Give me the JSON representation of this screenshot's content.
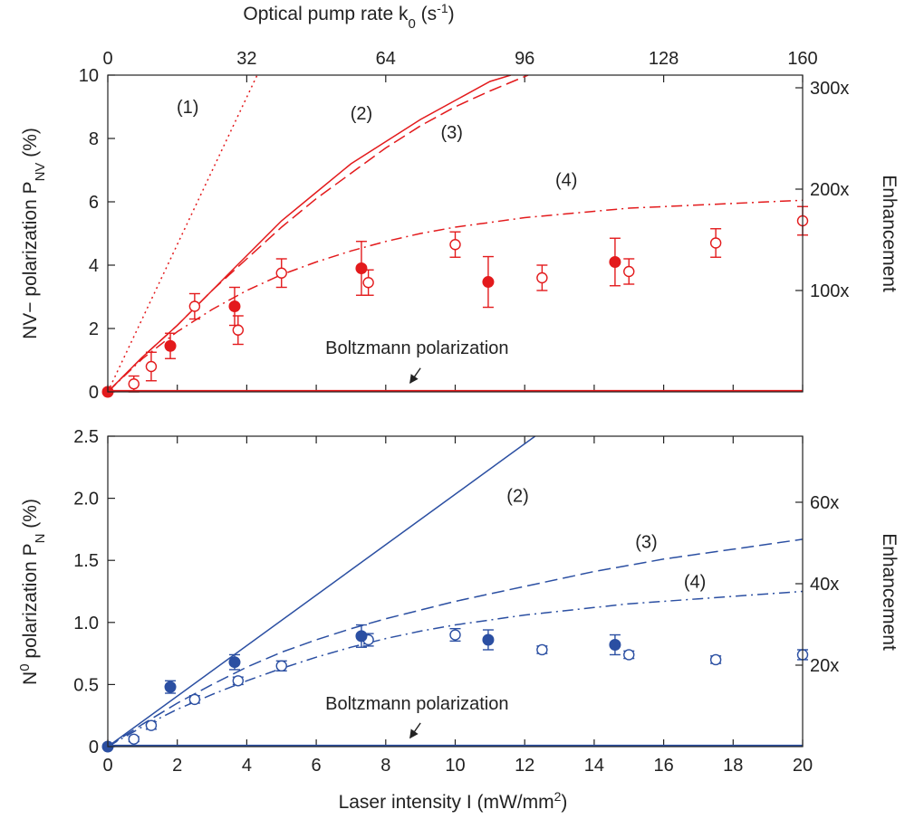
{
  "chart_data": [
    {
      "type": "line",
      "panel": "top",
      "top_axis_label": "Optical pump rate k",
      "top_axis_label_sub": "0",
      "top_axis_label_unit_pre": " (s",
      "top_axis_label_unit_sup": "-1",
      "top_axis_label_unit_post": ")",
      "top_ticks": [
        "0",
        "32",
        "64",
        "96",
        "128",
        "160"
      ],
      "ylabel": "NV− polarization P",
      "ylabel_sub": "NV",
      "ylabel_post": " (%)",
      "y2label": "Enhancement",
      "xlim": [
        0,
        20
      ],
      "ylim": [
        0,
        10
      ],
      "yticks": [
        "0",
        "2",
        "4",
        "6",
        "8",
        "10"
      ],
      "y2ticks": [
        {
          "label": "100x",
          "y": 3.2
        },
        {
          "label": "200x",
          "y": 6.4
        },
        {
          "label": "300x",
          "y": 9.6
        }
      ],
      "color": "#e31a1c",
      "series": [
        {
          "name": "(1)",
          "style": "dotted",
          "label_pos": [
            2.3,
            8.8
          ],
          "x": [
            0,
            4.3
          ],
          "y": [
            0,
            10
          ]
        },
        {
          "name": "(2)",
          "style": "solid",
          "label_pos": [
            7.3,
            8.6
          ],
          "x": [
            0,
            1,
            2,
            3,
            4,
            5,
            6,
            7,
            8,
            9,
            10,
            11,
            11.6
          ],
          "y": [
            0,
            1.1,
            2.1,
            3.2,
            4.3,
            5.4,
            6.3,
            7.2,
            7.9,
            8.6,
            9.2,
            9.8,
            10
          ]
        },
        {
          "name": "(3)",
          "style": "dashed",
          "label_pos": [
            9.9,
            8.0
          ],
          "x": [
            0,
            1,
            2,
            3,
            4,
            5,
            6,
            7,
            8,
            9,
            10,
            11,
            12.1
          ],
          "y": [
            0,
            1.1,
            2.1,
            3.2,
            4.2,
            5.2,
            6.1,
            6.9,
            7.7,
            8.4,
            9.0,
            9.5,
            10
          ]
        },
        {
          "name": "(4)",
          "style": "dashdot",
          "label_pos": [
            13.2,
            6.5
          ],
          "x": [
            0,
            1,
            2,
            3,
            4,
            5,
            6,
            7,
            8,
            9,
            10,
            11,
            12,
            13,
            14,
            15,
            16,
            17,
            18,
            19,
            20
          ],
          "y": [
            0,
            1.05,
            1.9,
            2.6,
            3.2,
            3.7,
            4.1,
            4.45,
            4.75,
            5.0,
            5.2,
            5.35,
            5.5,
            5.6,
            5.7,
            5.8,
            5.85,
            5.9,
            5.95,
            6.0,
            6.05
          ]
        },
        {
          "name": "Boltzmann polarization",
          "style": "solid",
          "x": [
            0,
            20
          ],
          "y": [
            0.03,
            0.03
          ]
        }
      ],
      "filled_points": [
        {
          "x": 0,
          "y": 0,
          "err": 0
        },
        {
          "x": 1.8,
          "y": 1.45,
          "err": 0.4
        },
        {
          "x": 3.65,
          "y": 2.7,
          "err": 0.6
        },
        {
          "x": 7.3,
          "y": 3.9,
          "err": 0.85
        },
        {
          "x": 10.95,
          "y": 3.47,
          "err": 0.8
        },
        {
          "x": 14.6,
          "y": 4.1,
          "err": 0.75
        }
      ],
      "open_points": [
        {
          "x": 0.75,
          "y": 0.25,
          "err": 0.25
        },
        {
          "x": 1.25,
          "y": 0.8,
          "err": 0.45
        },
        {
          "x": 2.5,
          "y": 2.7,
          "err": 0.4
        },
        {
          "x": 3.75,
          "y": 1.95,
          "err": 0.45
        },
        {
          "x": 5.0,
          "y": 3.75,
          "err": 0.45
        },
        {
          "x": 7.5,
          "y": 3.45,
          "err": 0.4
        },
        {
          "x": 10.0,
          "y": 4.65,
          "err": 0.4
        },
        {
          "x": 12.5,
          "y": 3.6,
          "err": 0.4
        },
        {
          "x": 15.0,
          "y": 3.8,
          "err": 0.4
        },
        {
          "x": 17.5,
          "y": 4.7,
          "err": 0.45
        },
        {
          "x": 20.0,
          "y": 5.4,
          "err": 0.45
        }
      ],
      "annotation": {
        "text": "Boltzmann polarization",
        "text_pos": [
          8.9,
          1.2
        ],
        "arrow_from": [
          9.0,
          0.75
        ],
        "arrow_to": [
          8.7,
          0.28
        ]
      }
    },
    {
      "type": "line",
      "panel": "bottom",
      "ylabel_pre": "N",
      "ylabel_sup": "0",
      "ylabel_mid": " polarization P",
      "ylabel_sub": "N",
      "ylabel_post": " (%)",
      "y2label": "Enhancement",
      "xlabel": "Laser intensity I (mW/mm",
      "xlabel_sup": "2",
      "xlabel_post": ")",
      "xlim": [
        0,
        20
      ],
      "ylim": [
        0,
        2.5
      ],
      "xticks": [
        "0",
        "2",
        "4",
        "6",
        "8",
        "10",
        "12",
        "14",
        "16",
        "18",
        "20"
      ],
      "yticks": [
        "0",
        "0.5",
        "1.0",
        "1.5",
        "2.0",
        "2.5"
      ],
      "y2ticks": [
        {
          "label": "20x",
          "y": 0.656
        },
        {
          "label": "40x",
          "y": 1.312
        },
        {
          "label": "60x",
          "y": 1.968
        }
      ],
      "color": "#2b4fa2",
      "series": [
        {
          "name": "(2)",
          "style": "solid",
          "label_pos": [
            11.8,
            1.97
          ],
          "x": [
            0,
            12.3
          ],
          "y": [
            0,
            2.5
          ]
        },
        {
          "name": "(3)",
          "style": "dashed",
          "label_pos": [
            15.5,
            1.6
          ],
          "x": [
            0,
            1,
            2,
            3,
            4,
            5,
            6,
            7,
            8,
            9,
            10,
            11,
            12,
            13,
            14,
            15,
            16,
            17,
            18,
            19,
            20
          ],
          "y": [
            0,
            0.18,
            0.35,
            0.5,
            0.64,
            0.76,
            0.86,
            0.95,
            1.03,
            1.1,
            1.17,
            1.23,
            1.29,
            1.35,
            1.41,
            1.46,
            1.51,
            1.55,
            1.59,
            1.63,
            1.67
          ]
        },
        {
          "name": "(4)",
          "style": "dashdot",
          "label_pos": [
            16.9,
            1.28
          ],
          "x": [
            0,
            1,
            2,
            3,
            4,
            5,
            6,
            7,
            8,
            9,
            10,
            11,
            12,
            13,
            14,
            15,
            16,
            17,
            18,
            19,
            20
          ],
          "y": [
            0,
            0.16,
            0.3,
            0.42,
            0.53,
            0.63,
            0.72,
            0.8,
            0.87,
            0.93,
            0.98,
            1.02,
            1.06,
            1.09,
            1.12,
            1.15,
            1.17,
            1.19,
            1.21,
            1.23,
            1.25
          ]
        },
        {
          "name": "Boltzmann polarization",
          "style": "solid",
          "x": [
            0,
            20
          ],
          "y": [
            0.008,
            0.008
          ]
        }
      ],
      "filled_points": [
        {
          "x": 0,
          "y": 0,
          "err": 0
        },
        {
          "x": 1.8,
          "y": 0.48,
          "err": 0.05
        },
        {
          "x": 3.65,
          "y": 0.68,
          "err": 0.06
        },
        {
          "x": 7.3,
          "y": 0.89,
          "err": 0.09
        },
        {
          "x": 10.95,
          "y": 0.86,
          "err": 0.08
        },
        {
          "x": 14.6,
          "y": 0.82,
          "err": 0.08
        }
      ],
      "open_points": [
        {
          "x": 0.75,
          "y": 0.06,
          "err": 0.02
        },
        {
          "x": 1.25,
          "y": 0.17,
          "err": 0.03
        },
        {
          "x": 2.5,
          "y": 0.38,
          "err": 0.03
        },
        {
          "x": 3.75,
          "y": 0.53,
          "err": 0.03
        },
        {
          "x": 5.0,
          "y": 0.65,
          "err": 0.04
        },
        {
          "x": 7.5,
          "y": 0.86,
          "err": 0.05
        },
        {
          "x": 10.0,
          "y": 0.9,
          "err": 0.05
        },
        {
          "x": 12.5,
          "y": 0.78,
          "err": 0.03
        },
        {
          "x": 15.0,
          "y": 0.74,
          "err": 0.03
        },
        {
          "x": 17.5,
          "y": 0.7,
          "err": 0.03
        },
        {
          "x": 20.0,
          "y": 0.74,
          "err": 0.04
        }
      ],
      "annotation": {
        "text": "Boltzmann polarization",
        "text_pos": [
          8.9,
          0.3
        ],
        "arrow_from": [
          9.0,
          0.19
        ],
        "arrow_to": [
          8.7,
          0.07
        ]
      }
    }
  ]
}
